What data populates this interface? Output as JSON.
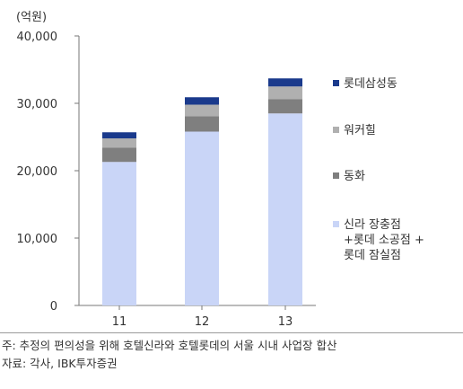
{
  "chart_data": {
    "type": "bar",
    "stacked": true,
    "unit_label": "(억원)",
    "categories": [
      "11",
      "12",
      "13"
    ],
    "ylim": [
      0,
      40000
    ],
    "yticks": [
      0,
      10000,
      20000,
      30000,
      40000
    ],
    "ytick_labels": [
      "0",
      "10,000",
      "20,000",
      "30,000",
      "40,000"
    ],
    "series": [
      {
        "name": "신라 장충점 +롯데 소공점 + 롯데 잠실점",
        "legend_lines": [
          "신라 장충점",
          "+롯데 소공점 +",
          "롯데 잠실점"
        ],
        "color": "#c9d5f7",
        "values": [
          21300,
          25800,
          28500
        ]
      },
      {
        "name": "동화",
        "legend_lines": [
          "동화"
        ],
        "color": "#7f7f7f",
        "values": [
          2100,
          2300,
          2100
        ]
      },
      {
        "name": "워커힐",
        "legend_lines": [
          "워커힐"
        ],
        "color": "#b0b0b0",
        "values": [
          1400,
          1700,
          1900
        ]
      },
      {
        "name": "롯데삼성동",
        "legend_lines": [
          "롯데삼성동"
        ],
        "color": "#1a3a8c",
        "values": [
          900,
          1100,
          1200
        ]
      }
    ],
    "legend_placement": "right",
    "grid": false
  },
  "footnotes": {
    "note": "주: 추정의 편의성을 위해 호텔신라와 호텔롯데의 서울 시내 사업장 합산",
    "source": "자료: 각사, IBK투자증권"
  }
}
